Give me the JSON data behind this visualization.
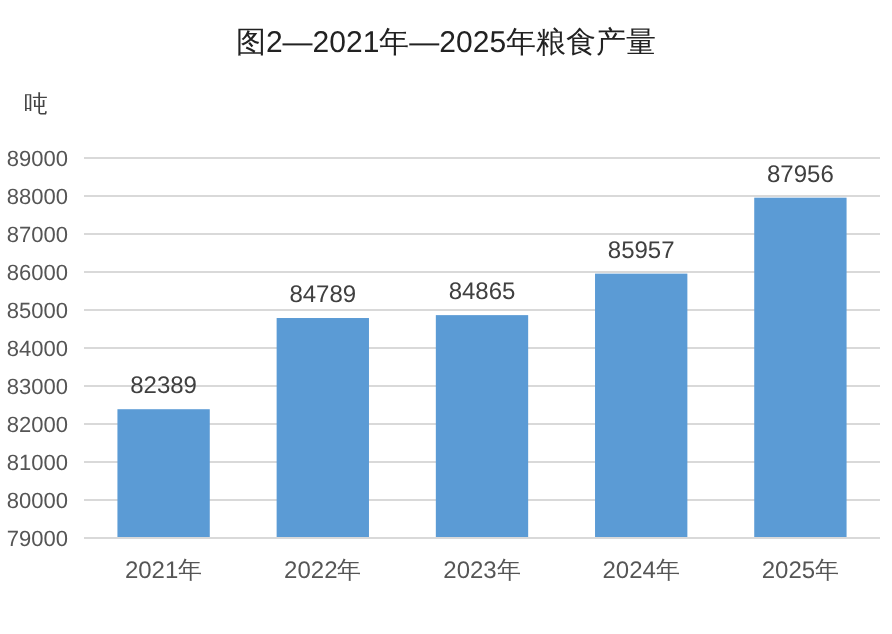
{
  "chart_data": {
    "type": "bar",
    "title": "图2—2021年—2025年粮食产量",
    "ylabel": "吨",
    "categories": [
      "2021年",
      "2022年",
      "2023年",
      "2024年",
      "2025年"
    ],
    "values": [
      82389,
      84789,
      84865,
      85957,
      87956
    ],
    "color": "#5b9bd5",
    "ylim": [
      79000,
      89000
    ],
    "yticks": [
      79000,
      80000,
      81000,
      82000,
      83000,
      84000,
      85000,
      86000,
      87000,
      88000,
      89000
    ],
    "grid": "y",
    "data_labels": true
  }
}
